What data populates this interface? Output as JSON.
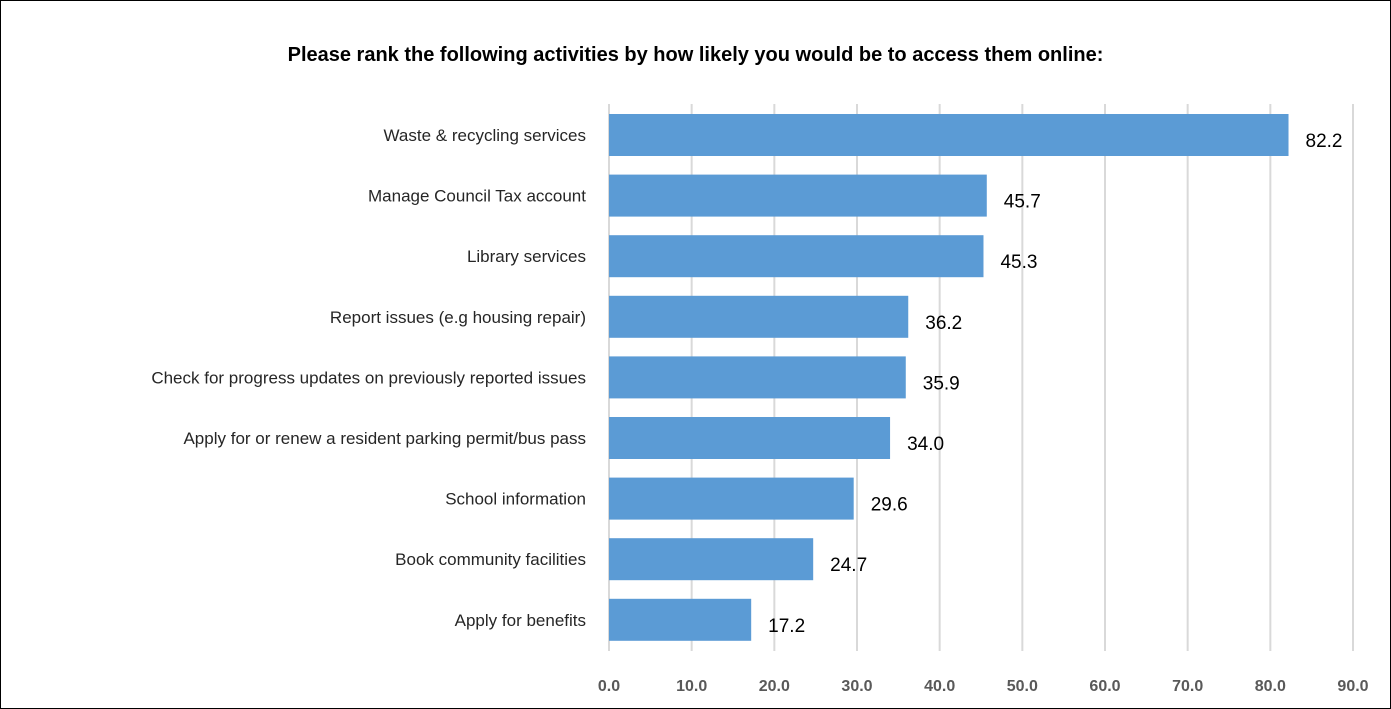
{
  "chart_data": {
    "type": "bar",
    "orientation": "horizontal",
    "title": "Please rank the following activities by how likely you would be to access them online:",
    "xlabel": "",
    "ylabel": "",
    "categories": [
      "Waste & recycling services",
      "Manage Council Tax account ",
      "Library services",
      "Report issues (e.g housing repair)",
      "Check for progress updates on previously reported issues",
      "Apply for or renew a resident parking permit/bus pass",
      "School information",
      "Book community facilities",
      "Apply for benefits"
    ],
    "values": [
      82.2,
      45.7,
      45.3,
      36.2,
      35.9,
      34.0,
      29.6,
      24.7,
      17.2
    ],
    "value_labels": [
      "82.2",
      "45.7",
      "45.3",
      "36.2",
      "35.9",
      "34.0",
      "29.6",
      "24.7",
      "17.2"
    ],
    "xlim": [
      0,
      90
    ],
    "x_ticks": [
      0,
      10,
      20,
      30,
      40,
      50,
      60,
      70,
      80,
      90
    ],
    "x_tick_labels": [
      "0.0",
      "10.0",
      "20.0",
      "30.0",
      "40.0",
      "50.0",
      "60.0",
      "70.0",
      "80.0",
      "90.0"
    ],
    "grid": "vertical",
    "legend": "none",
    "colors": {
      "bar": "#5b9bd5",
      "grid": "#d9d9d9",
      "tick_text": "#595959",
      "label_text": "#262626"
    }
  }
}
